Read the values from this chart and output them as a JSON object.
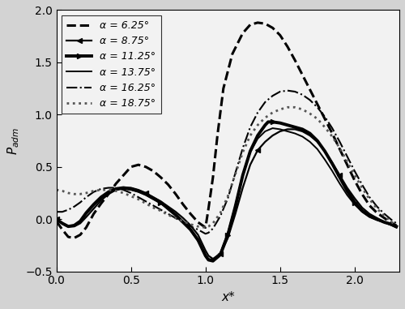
{
  "title": "",
  "xlabel": "x*",
  "ylabel": "$P_{adm}$",
  "xlim": [
    0.0,
    2.3
  ],
  "ylim": [
    -0.5,
    2.0
  ],
  "xticks": [
    0.0,
    0.5,
    1.0,
    1.5,
    2.0
  ],
  "yticks": [
    -0.5,
    0.0,
    0.5,
    1.0,
    1.5,
    2.0
  ],
  "plot_bg": "#f0f0f0",
  "fig_bg": "#d8d8d8",
  "series": [
    {
      "label": "α = 6.25°",
      "linestyle": "--",
      "linewidth": 2.2,
      "color": "black",
      "x": [
        0.0,
        0.04,
        0.08,
        0.12,
        0.16,
        0.2,
        0.25,
        0.3,
        0.35,
        0.4,
        0.45,
        0.5,
        0.55,
        0.6,
        0.65,
        0.7,
        0.75,
        0.8,
        0.85,
        0.9,
        0.95,
        1.0,
        1.02,
        1.05,
        1.08,
        1.12,
        1.18,
        1.25,
        1.3,
        1.35,
        1.4,
        1.45,
        1.5,
        1.55,
        1.6,
        1.65,
        1.7,
        1.75,
        1.8,
        1.85,
        1.9,
        1.95,
        2.0,
        2.05,
        2.1,
        2.15,
        2.2,
        2.25,
        2.28
      ],
      "y": [
        -0.02,
        -0.1,
        -0.17,
        -0.18,
        -0.15,
        -0.08,
        0.05,
        0.15,
        0.24,
        0.34,
        0.42,
        0.5,
        0.52,
        0.5,
        0.46,
        0.4,
        0.33,
        0.24,
        0.14,
        0.05,
        -0.03,
        -0.08,
        0.1,
        0.4,
        0.8,
        1.25,
        1.58,
        1.78,
        1.86,
        1.88,
        1.87,
        1.83,
        1.76,
        1.65,
        1.52,
        1.38,
        1.24,
        1.1,
        0.96,
        0.82,
        0.67,
        0.52,
        0.37,
        0.24,
        0.13,
        0.06,
        0.01,
        -0.04,
        -0.06
      ]
    },
    {
      "label": "α = 8.75°",
      "linestyle": "-",
      "linewidth": 1.6,
      "color": "black",
      "marker": "<",
      "markevery": 0.25,
      "markersize": 5,
      "x": [
        0.0,
        0.04,
        0.08,
        0.12,
        0.16,
        0.2,
        0.25,
        0.3,
        0.35,
        0.4,
        0.45,
        0.5,
        0.55,
        0.6,
        0.65,
        0.7,
        0.75,
        0.8,
        0.85,
        0.9,
        0.95,
        1.0,
        1.02,
        1.05,
        1.1,
        1.15,
        1.2,
        1.25,
        1.3,
        1.35,
        1.4,
        1.45,
        1.5,
        1.55,
        1.6,
        1.65,
        1.7,
        1.75,
        1.8,
        1.85,
        1.9,
        1.95,
        2.0,
        2.05,
        2.1,
        2.15,
        2.2,
        2.25,
        2.28
      ],
      "y": [
        0.0,
        -0.04,
        -0.07,
        -0.07,
        -0.04,
        0.02,
        0.1,
        0.18,
        0.24,
        0.28,
        0.3,
        0.3,
        0.28,
        0.25,
        0.21,
        0.17,
        0.12,
        0.07,
        0.01,
        -0.06,
        -0.15,
        -0.3,
        -0.35,
        -0.38,
        -0.33,
        -0.18,
        0.05,
        0.3,
        0.52,
        0.66,
        0.74,
        0.8,
        0.84,
        0.86,
        0.86,
        0.84,
        0.8,
        0.74,
        0.65,
        0.54,
        0.42,
        0.3,
        0.2,
        0.11,
        0.05,
        0.01,
        -0.03,
        -0.06,
        -0.08
      ]
    },
    {
      "label": "α = 11.25°",
      "linestyle": "-",
      "linewidth": 2.8,
      "color": "black",
      "marker": ">",
      "markevery": 0.28,
      "markersize": 5,
      "x": [
        0.0,
        0.04,
        0.08,
        0.12,
        0.16,
        0.2,
        0.25,
        0.3,
        0.35,
        0.4,
        0.45,
        0.5,
        0.55,
        0.6,
        0.65,
        0.7,
        0.75,
        0.8,
        0.85,
        0.9,
        0.95,
        1.0,
        1.02,
        1.05,
        1.1,
        1.15,
        1.2,
        1.25,
        1.3,
        1.35,
        1.4,
        1.42,
        1.45,
        1.5,
        1.55,
        1.6,
        1.65,
        1.7,
        1.75,
        1.8,
        1.85,
        1.9,
        1.95,
        2.0,
        2.05,
        2.1,
        2.15,
        2.2,
        2.25,
        2.28
      ],
      "y": [
        0.0,
        -0.04,
        -0.07,
        -0.06,
        -0.02,
        0.06,
        0.14,
        0.21,
        0.26,
        0.29,
        0.3,
        0.29,
        0.27,
        0.24,
        0.2,
        0.16,
        0.1,
        0.04,
        -0.03,
        -0.1,
        -0.2,
        -0.35,
        -0.39,
        -0.4,
        -0.34,
        -0.15,
        0.12,
        0.42,
        0.65,
        0.8,
        0.9,
        0.93,
        0.93,
        0.92,
        0.9,
        0.88,
        0.86,
        0.82,
        0.75,
        0.65,
        0.53,
        0.4,
        0.27,
        0.16,
        0.08,
        0.03,
        0.0,
        -0.03,
        -0.05,
        -0.07
      ]
    },
    {
      "label": "α = 13.75°",
      "linestyle": "-",
      "linewidth": 1.4,
      "color": "black",
      "x": [
        0.0,
        0.04,
        0.08,
        0.12,
        0.16,
        0.2,
        0.25,
        0.3,
        0.35,
        0.4,
        0.45,
        0.5,
        0.55,
        0.6,
        0.65,
        0.7,
        0.75,
        0.8,
        0.85,
        0.9,
        0.95,
        1.0,
        1.02,
        1.05,
        1.1,
        1.15,
        1.2,
        1.25,
        1.3,
        1.35,
        1.4,
        1.45,
        1.5,
        1.55,
        1.6,
        1.65,
        1.7,
        1.75,
        1.8,
        1.85,
        1.9,
        1.95,
        2.0,
        2.05,
        2.1,
        2.15,
        2.2,
        2.25,
        2.28
      ],
      "y": [
        0.0,
        -0.04,
        -0.07,
        -0.06,
        -0.02,
        0.05,
        0.13,
        0.2,
        0.25,
        0.28,
        0.29,
        0.28,
        0.26,
        0.23,
        0.19,
        0.15,
        0.1,
        0.04,
        -0.03,
        -0.11,
        -0.21,
        -0.35,
        -0.38,
        -0.39,
        -0.32,
        -0.13,
        0.13,
        0.43,
        0.64,
        0.77,
        0.84,
        0.87,
        0.86,
        0.84,
        0.82,
        0.79,
        0.74,
        0.67,
        0.57,
        0.46,
        0.34,
        0.23,
        0.14,
        0.07,
        0.02,
        -0.01,
        -0.03,
        -0.06,
        -0.08
      ]
    },
    {
      "label": "α = 16.25°",
      "linestyle": "-.",
      "linewidth": 1.5,
      "color": "black",
      "x": [
        0.0,
        0.04,
        0.08,
        0.12,
        0.16,
        0.2,
        0.25,
        0.3,
        0.35,
        0.4,
        0.45,
        0.5,
        0.55,
        0.6,
        0.65,
        0.7,
        0.75,
        0.8,
        0.85,
        0.9,
        0.95,
        1.0,
        1.02,
        1.05,
        1.1,
        1.15,
        1.2,
        1.25,
        1.3,
        1.35,
        1.4,
        1.45,
        1.5,
        1.55,
        1.6,
        1.65,
        1.7,
        1.75,
        1.8,
        1.85,
        1.9,
        1.95,
        2.0,
        2.05,
        2.1,
        2.15,
        2.2,
        2.25,
        2.28
      ],
      "y": [
        0.07,
        0.07,
        0.09,
        0.12,
        0.16,
        0.21,
        0.26,
        0.29,
        0.3,
        0.3,
        0.28,
        0.25,
        0.21,
        0.17,
        0.13,
        0.09,
        0.05,
        0.01,
        -0.03,
        -0.07,
        -0.1,
        -0.14,
        -0.13,
        -0.09,
        0.03,
        0.2,
        0.44,
        0.68,
        0.88,
        1.02,
        1.12,
        1.18,
        1.22,
        1.23,
        1.22,
        1.19,
        1.14,
        1.07,
        0.98,
        0.87,
        0.74,
        0.6,
        0.46,
        0.33,
        0.21,
        0.12,
        0.05,
        -0.01,
        -0.04
      ]
    },
    {
      "label": "α = 18.75°",
      "linestyle": ":",
      "linewidth": 2.0,
      "color": "#555555",
      "x": [
        0.0,
        0.04,
        0.08,
        0.12,
        0.16,
        0.2,
        0.25,
        0.3,
        0.35,
        0.4,
        0.45,
        0.5,
        0.55,
        0.6,
        0.65,
        0.7,
        0.75,
        0.8,
        0.85,
        0.9,
        0.95,
        1.0,
        1.02,
        1.05,
        1.1,
        1.15,
        1.2,
        1.25,
        1.3,
        1.35,
        1.4,
        1.45,
        1.5,
        1.55,
        1.6,
        1.65,
        1.7,
        1.75,
        1.8,
        1.85,
        1.9,
        1.95,
        2.0,
        2.05,
        2.1,
        2.15,
        2.2,
        2.25,
        2.28
      ],
      "y": [
        0.28,
        0.27,
        0.25,
        0.24,
        0.24,
        0.25,
        0.27,
        0.28,
        0.28,
        0.27,
        0.25,
        0.22,
        0.19,
        0.15,
        0.11,
        0.08,
        0.04,
        0.01,
        -0.02,
        -0.05,
        -0.07,
        -0.08,
        -0.07,
        -0.04,
        0.06,
        0.22,
        0.43,
        0.64,
        0.8,
        0.9,
        0.97,
        1.02,
        1.05,
        1.07,
        1.07,
        1.05,
        1.01,
        0.96,
        0.88,
        0.79,
        0.68,
        0.55,
        0.42,
        0.3,
        0.19,
        0.1,
        0.03,
        -0.03,
        -0.06
      ]
    }
  ]
}
